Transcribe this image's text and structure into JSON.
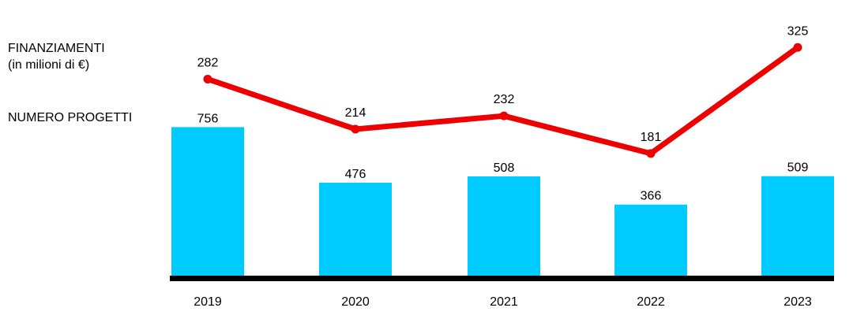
{
  "chart_data": {
    "type": "bar",
    "categories": [
      "2019",
      "2020",
      "2021",
      "2022",
      "2023"
    ],
    "series": [
      {
        "name": "NUMERO PROGETTI",
        "type": "bar",
        "values": [
          756,
          476,
          508,
          366,
          509
        ],
        "color": "#00cbff"
      },
      {
        "name": "FINANZIAMENTI (in milioni di €)",
        "type": "line",
        "values": [
          282,
          214,
          232,
          181,
          325
        ],
        "color": "#ee0000"
      }
    ],
    "labels": {
      "finanziamenti_line1": "FINANZIAMENTI",
      "finanziamenti_line2": "(in milioni di €)",
      "numero_progetti": "NUMERO PROGETTI"
    },
    "axis_color": "#000000",
    "grid": false
  }
}
